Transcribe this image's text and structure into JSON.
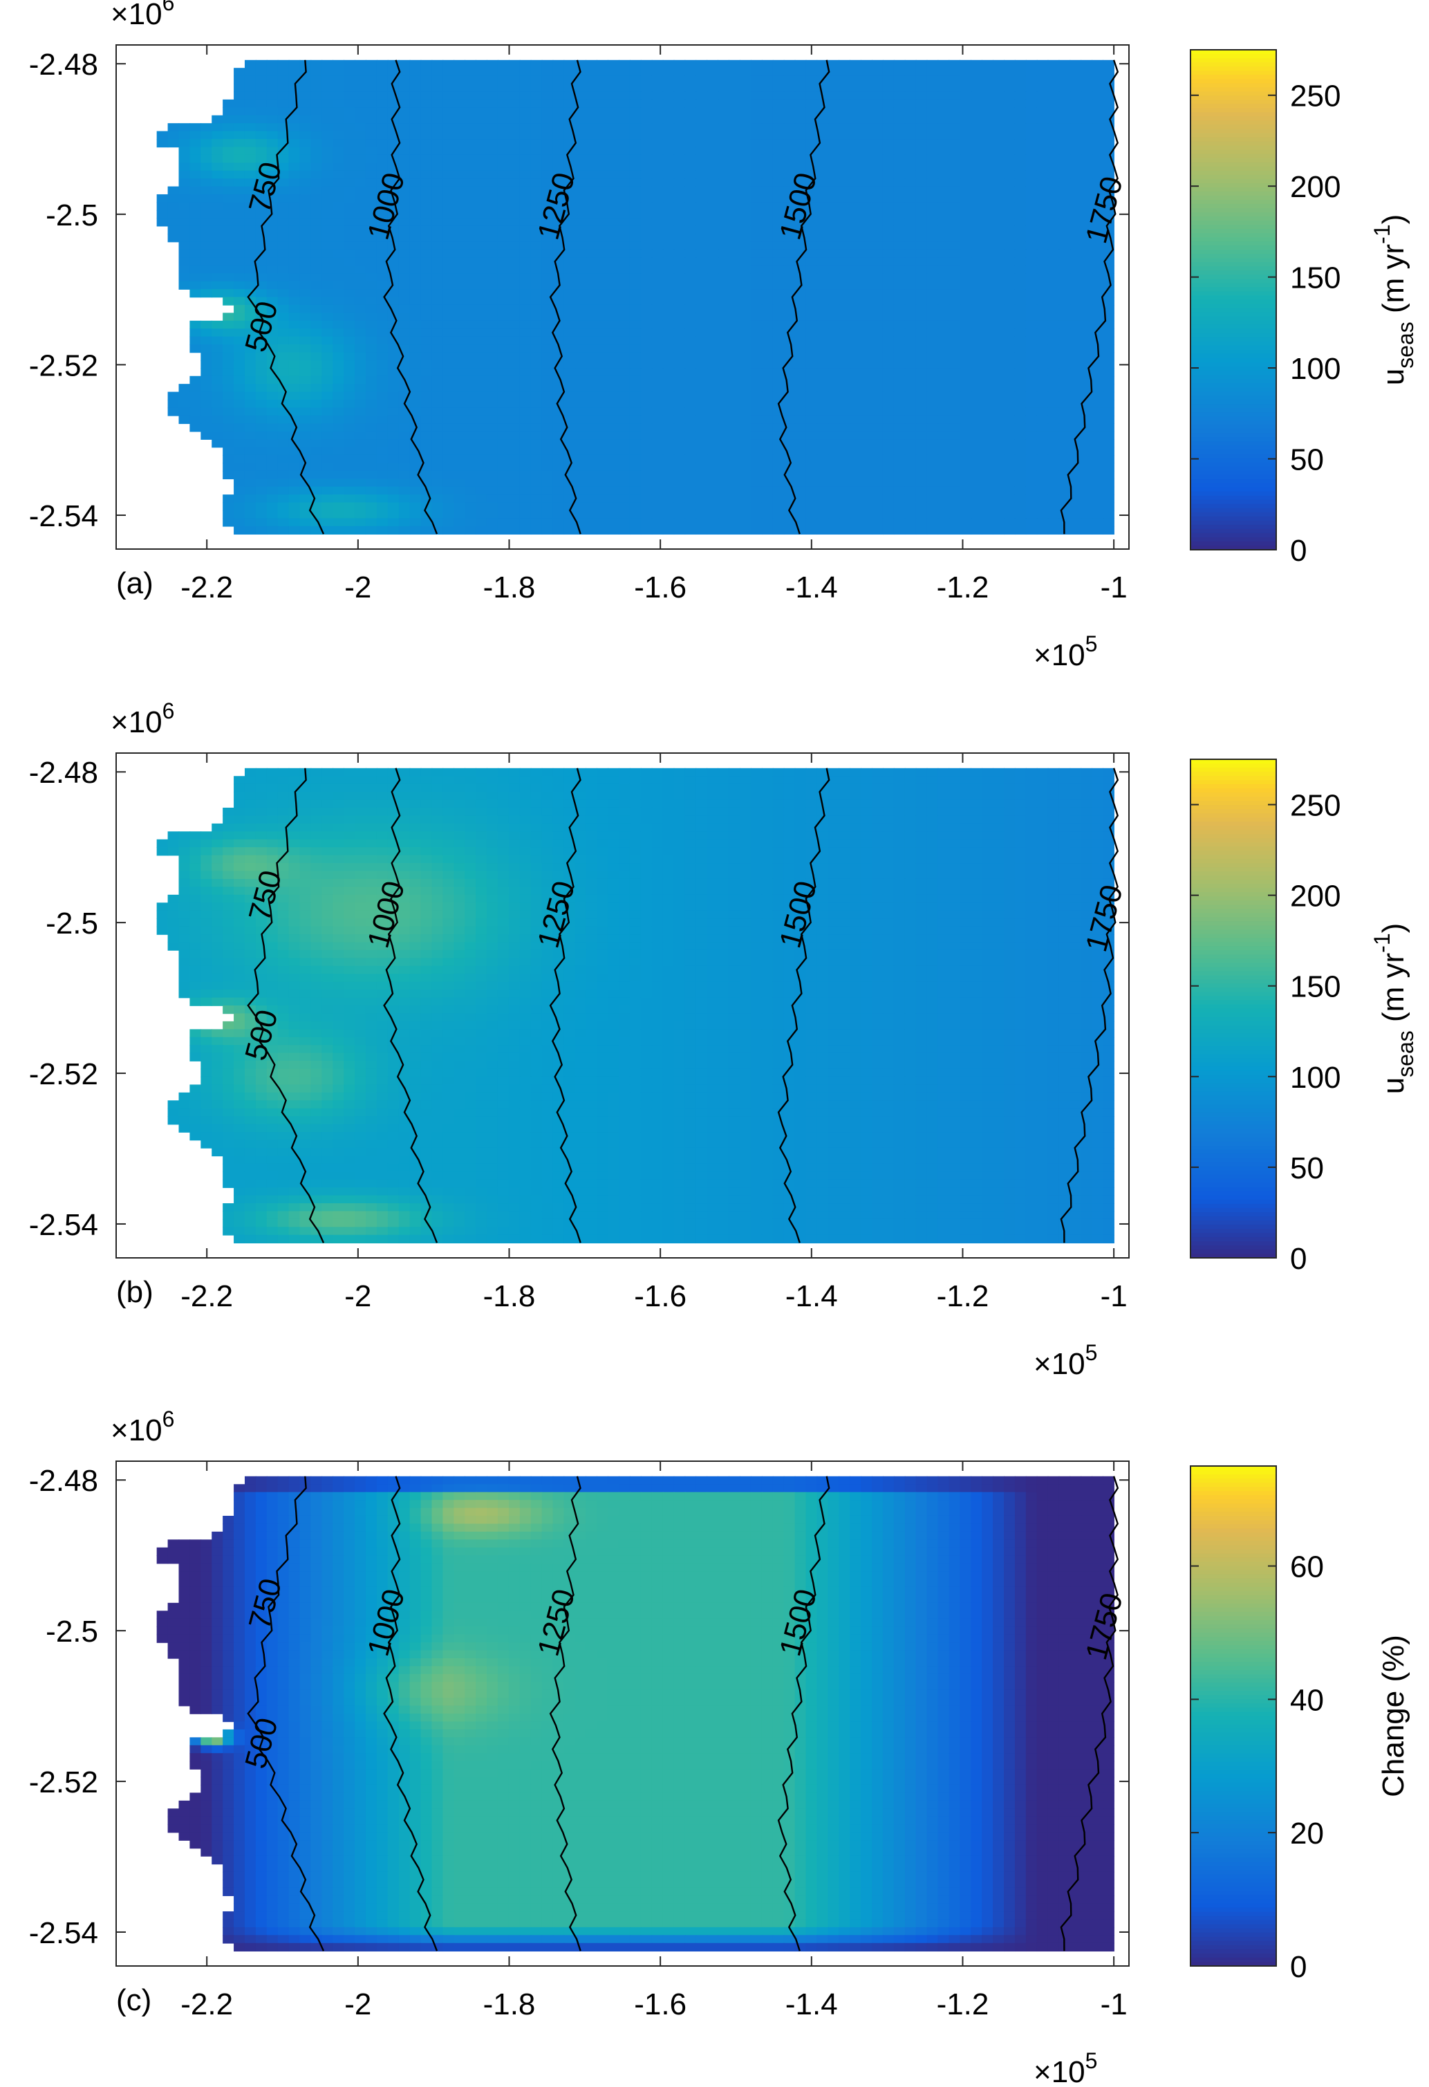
{
  "chart_data": [
    {
      "type": "heatmap",
      "panel_label": "(a)",
      "x_ticks": [
        "-2.2",
        "-2",
        "-1.8",
        "-1.6",
        "-1.4",
        "-1.2",
        "-1"
      ],
      "x_tick_values": [
        -2.2,
        -2.0,
        -1.8,
        -1.6,
        -1.4,
        -1.2,
        -1.0
      ],
      "x_exponent": "×10",
      "x_exponent_power": "5",
      "xlim": [
        -2.32,
        -0.98
      ],
      "y_ticks": [
        "-2.48",
        "-2.5",
        "-2.52",
        "-2.54"
      ],
      "y_tick_values": [
        -2.48,
        -2.5,
        -2.52,
        -2.54
      ],
      "y_exponent": "×10",
      "y_exponent_power": "6",
      "ylim": [
        -2.5445,
        -2.4775
      ],
      "colorbar": {
        "label_main": "u",
        "label_sub": "seas",
        "label_unit": " (m yr",
        "label_sup": "-1",
        "label_close": ")",
        "ticks": [
          "0",
          "50",
          "100",
          "150",
          "200",
          "250"
        ],
        "tick_values": [
          0,
          50,
          100,
          150,
          200,
          250
        ],
        "range": [
          0,
          275
        ],
        "colormap": "parula"
      },
      "contours": [
        {
          "label": "750",
          "value": 750
        },
        {
          "label": "1000",
          "value": 1000
        },
        {
          "label": "1250",
          "value": 1250
        },
        {
          "label": "1500",
          "value": 1500
        },
        {
          "label": "1750",
          "value": 1750
        },
        {
          "label": "500",
          "value": 500
        }
      ],
      "field_typical_value": 75,
      "field_peak_value": 160
    },
    {
      "type": "heatmap",
      "panel_label": "(b)",
      "x_ticks": [
        "-2.2",
        "-2",
        "-1.8",
        "-1.6",
        "-1.4",
        "-1.2",
        "-1"
      ],
      "x_tick_values": [
        -2.2,
        -2.0,
        -1.8,
        -1.6,
        -1.4,
        -1.2,
        -1.0
      ],
      "x_exponent": "×10",
      "x_exponent_power": "5",
      "xlim": [
        -2.32,
        -0.98
      ],
      "y_ticks": [
        "-2.48",
        "-2.5",
        "-2.52",
        "-2.54"
      ],
      "y_tick_values": [
        -2.48,
        -2.5,
        -2.52,
        -2.54
      ],
      "y_exponent": "×10",
      "y_exponent_power": "6",
      "ylim": [
        -2.5445,
        -2.4775
      ],
      "colorbar": {
        "label_main": "u",
        "label_sub": "seas",
        "label_unit": " (m yr",
        "label_sup": "-1",
        "label_close": ")",
        "ticks": [
          "0",
          "50",
          "100",
          "150",
          "200",
          "250"
        ],
        "tick_values": [
          0,
          50,
          100,
          150,
          200,
          250
        ],
        "range": [
          0,
          275
        ],
        "colormap": "parula"
      },
      "contours": [
        {
          "label": "750",
          "value": 750
        },
        {
          "label": "1000",
          "value": 1000
        },
        {
          "label": "1250",
          "value": 1250
        },
        {
          "label": "1500",
          "value": 1500
        },
        {
          "label": "1750",
          "value": 1750
        },
        {
          "label": "500",
          "value": 500
        }
      ],
      "field_typical_value": 110,
      "field_peak_value": 190
    },
    {
      "type": "heatmap",
      "panel_label": "(c)",
      "x_ticks": [
        "-2.2",
        "-2",
        "-1.8",
        "-1.6",
        "-1.4",
        "-1.2",
        "-1"
      ],
      "x_tick_values": [
        -2.2,
        -2.0,
        -1.8,
        -1.6,
        -1.4,
        -1.2,
        -1.0
      ],
      "x_exponent": "×10",
      "x_exponent_power": "5",
      "xlim": [
        -2.32,
        -0.98
      ],
      "y_ticks": [
        "-2.48",
        "-2.5",
        "-2.52",
        "-2.54"
      ],
      "y_tick_values": [
        -2.48,
        -2.5,
        -2.52,
        -2.54
      ],
      "y_exponent": "×10",
      "y_exponent_power": "6",
      "ylim": [
        -2.5445,
        -2.4775
      ],
      "colorbar": {
        "label_main": "Change (%)",
        "ticks": [
          "0",
          "20",
          "40",
          "60"
        ],
        "tick_values": [
          0,
          20,
          40,
          60
        ],
        "range": [
          0,
          75
        ],
        "colormap": "parula"
      },
      "contours": [
        {
          "label": "750",
          "value": 750
        },
        {
          "label": "1000",
          "value": 1000
        },
        {
          "label": "1250",
          "value": 1250
        },
        {
          "label": "1500",
          "value": 1500
        },
        {
          "label": "1750",
          "value": 1750
        },
        {
          "label": "500",
          "value": 500
        }
      ],
      "field_typical_value": 40,
      "field_peak_value": 65
    }
  ]
}
